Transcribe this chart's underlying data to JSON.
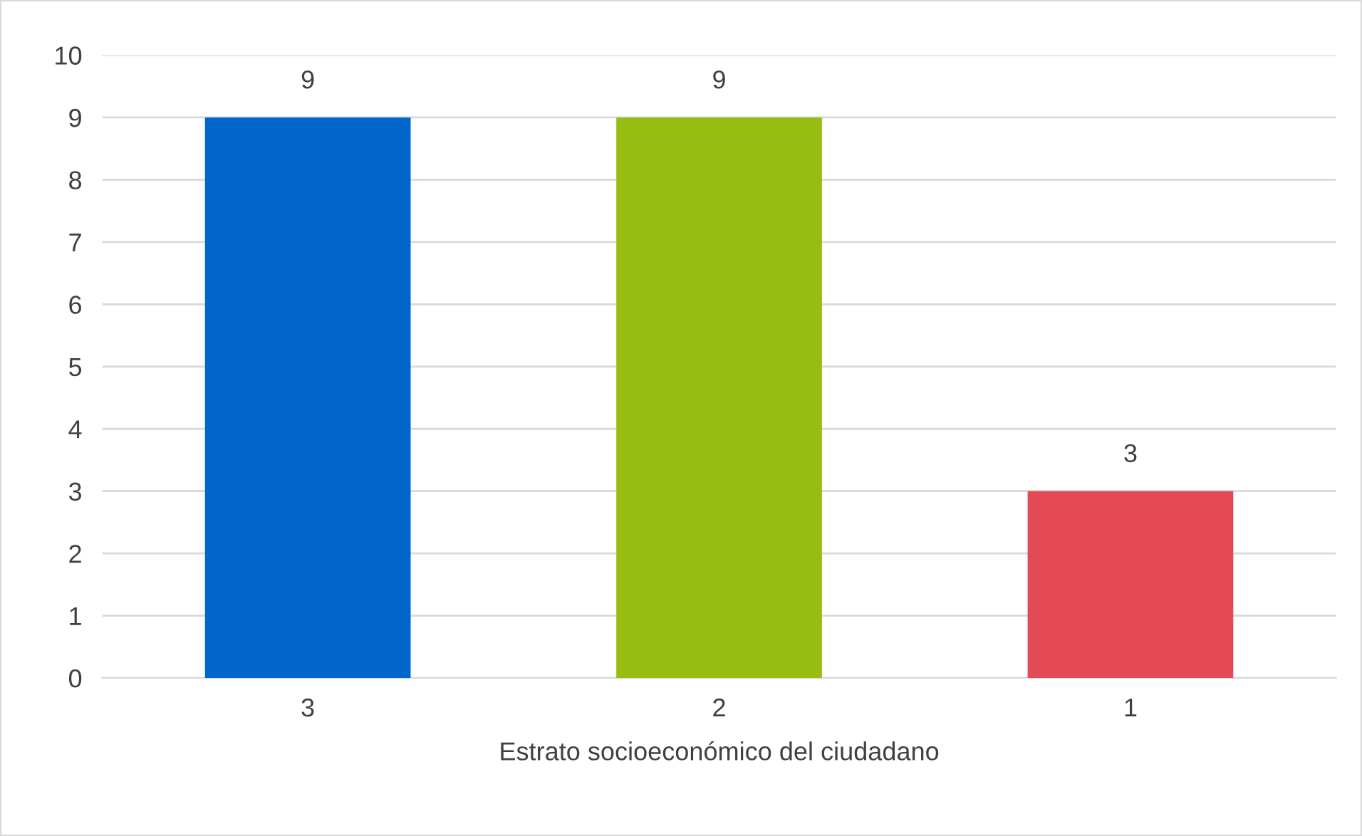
{
  "chart_data": {
    "type": "bar",
    "xlabel": "Estrato socioeconómico del ciudadano",
    "categories": [
      "3",
      "2",
      "1"
    ],
    "values": [
      9,
      9,
      3
    ],
    "colors": [
      "#0066cc",
      "#97bd12",
      "#e34a55"
    ],
    "ylim": [
      0,
      10
    ],
    "yticks": [
      0,
      1,
      2,
      3,
      4,
      5,
      6,
      7,
      8,
      9,
      10
    ],
    "grid": "y",
    "data_labels": true,
    "legend": false
  }
}
